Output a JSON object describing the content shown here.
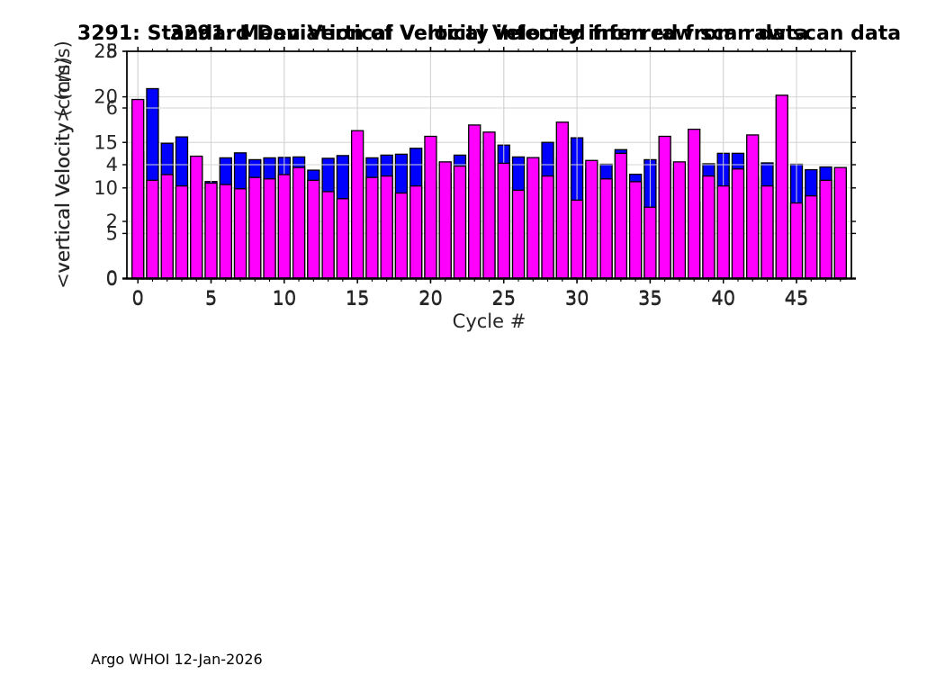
{
  "figure": {
    "footer": "Argo WHOI 12-Jan-2026",
    "background_color": "#ffffff"
  },
  "chart_data": [
    {
      "type": "bar",
      "title": "3291: Mean Vertical Velocity inferred from raw scan data",
      "xlabel": "",
      "ylabel": "vertical Velocity (cm/s)",
      "x": [
        0,
        1,
        2,
        3,
        4,
        5,
        6,
        7,
        8,
        9,
        10,
        11,
        12,
        13,
        14,
        15,
        16,
        17,
        18,
        19,
        20,
        21,
        22,
        23,
        24,
        25,
        26,
        27,
        28,
        29,
        30,
        31,
        32,
        33,
        34,
        35,
        36,
        37,
        38,
        39,
        40,
        41,
        42,
        43,
        44,
        45,
        46,
        47,
        48
      ],
      "values": [
        14.0,
        20.9,
        14.9,
        15.6,
        13.35,
        10.7,
        13.3,
        13.85,
        13.1,
        13.3,
        13.35,
        13.4,
        11.95,
        13.25,
        13.55,
        13.25,
        13.3,
        13.6,
        13.7,
        14.35,
        10.7,
        11.65,
        13.6,
        11.05,
        14.1,
        14.7,
        13.4,
        12.3,
        15.0,
        13.3,
        15.5,
        12.1,
        12.6,
        14.2,
        11.5,
        13.1,
        13.0,
        12.2,
        8.4,
        12.65,
        13.8,
        13.8,
        11.15,
        12.75,
        9.7,
        12.6,
        12.0,
        12.3,
        10.85
      ],
      "ylim": [
        0,
        25
      ],
      "xlim": [
        -0.75,
        48.75
      ],
      "yticks": [
        0,
        5,
        10,
        15,
        20,
        25
      ],
      "xticks": [
        0,
        5,
        10,
        15,
        20,
        25,
        30,
        35,
        40,
        45
      ],
      "grid": true,
      "legend": null,
      "bar_color": "#0000ff",
      "bar_edge_color": "#000000",
      "grid_color": "#d4d4d4",
      "text_color": "#262626",
      "title_color": "#000000"
    },
    {
      "type": "bar",
      "title": "3291: Standard Deviation of Vertical Velocity inferred from raw scan data",
      "xlabel": "Cycle #",
      "ylabel": "<vertical Velocity> (cm/s)",
      "x": [
        0,
        1,
        2,
        3,
        4,
        5,
        6,
        7,
        8,
        9,
        10,
        11,
        12,
        13,
        14,
        15,
        16,
        17,
        18,
        19,
        20,
        21,
        22,
        23,
        24,
        25,
        26,
        27,
        28,
        29,
        30,
        31,
        32,
        33,
        34,
        35,
        36,
        37,
        38,
        39,
        40,
        41,
        42,
        43,
        44,
        45,
        46,
        47,
        48
      ],
      "values": [
        6.3,
        3.45,
        3.65,
        3.25,
        4.3,
        3.35,
        3.3,
        3.15,
        3.55,
        3.5,
        3.65,
        3.9,
        3.45,
        3.05,
        2.8,
        5.2,
        3.55,
        3.6,
        3.0,
        3.25,
        5.0,
        4.1,
        3.95,
        5.4,
        5.15,
        4.05,
        3.1,
        4.25,
        3.6,
        5.5,
        2.75,
        4.15,
        3.5,
        4.4,
        3.4,
        2.5,
        5.0,
        4.1,
        5.25,
        3.6,
        3.25,
        3.85,
        5.05,
        3.25,
        6.45,
        2.65,
        2.9,
        3.45,
        3.9
      ],
      "ylim": [
        0,
        8
      ],
      "xlim": [
        -0.75,
        48.75
      ],
      "yticks": [
        0,
        2,
        4,
        6,
        8
      ],
      "xticks": [
        0,
        5,
        10,
        15,
        20,
        25,
        30,
        35,
        40,
        45
      ],
      "grid": true,
      "legend": null,
      "bar_color": "#ff00ff",
      "bar_edge_color": "#000000",
      "grid_color": "#d4d4d4",
      "text_color": "#262626",
      "title_color": "#000000"
    }
  ]
}
